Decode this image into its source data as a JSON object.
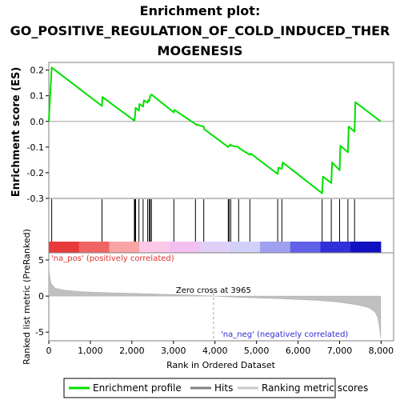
{
  "chart_data": {
    "type": "line",
    "title_lines": [
      "Enrichment plot:",
      "GO_POSITIVE_REGULATION_OF_COLD_INDUCED_THER",
      "MOGENESIS"
    ],
    "top_panel": {
      "ylabel": "Enrichment score (ES)",
      "ylim": [
        -0.3,
        0.23
      ],
      "yticks": [
        -0.3,
        -0.2,
        -0.1,
        0.0,
        0.1,
        0.2
      ],
      "ytick_labels": [
        "-0.3",
        "-0.2",
        "-0.1",
        "0.0",
        "0.1",
        "0.2"
      ],
      "series": [
        {
          "name": "Enrichment profile",
          "color": "#00e000",
          "x": [
            0,
            70,
            1280,
            1290,
            2060,
            2080,
            2090,
            2170,
            2180,
            2270,
            2290,
            2380,
            2390,
            2420,
            2440,
            2470,
            3010,
            3020,
            3530,
            3540,
            3730,
            3740,
            4320,
            4340,
            4380,
            4390,
            4570,
            4590,
            4840,
            4860,
            5510,
            5530,
            5610,
            5630,
            6580,
            6600,
            6800,
            6820,
            7000,
            7020,
            7200,
            7220,
            7360,
            7380,
            7990
          ],
          "y": [
            0.0,
            0.21,
            0.06,
            0.095,
            0.003,
            0.028,
            0.053,
            0.042,
            0.068,
            0.058,
            0.082,
            0.073,
            0.083,
            0.08,
            0.1,
            0.105,
            0.035,
            0.045,
            -0.01,
            -0.012,
            -0.02,
            -0.03,
            -0.1,
            -0.095,
            -0.09,
            -0.095,
            -0.1,
            -0.105,
            -0.13,
            -0.125,
            -0.205,
            -0.18,
            -0.185,
            -0.16,
            -0.28,
            -0.215,
            -0.24,
            -0.16,
            -0.19,
            -0.095,
            -0.12,
            -0.02,
            -0.04,
            0.075,
            0.0
          ]
        }
      ]
    },
    "hits_panel": {
      "legend_name": "Hits",
      "positions": [
        70,
        1280,
        2060,
        2080,
        2090,
        2170,
        2270,
        2380,
        2420,
        2440,
        2470,
        3010,
        3530,
        3730,
        4320,
        4340,
        4380,
        4570,
        4840,
        5510,
        5610,
        6580,
        6800,
        7000,
        7200,
        7360
      ],
      "gradient_colors": [
        "#e83a3a",
        "#f06464",
        "#f8a4a4",
        "#fcc8e8",
        "#f2c0f0",
        "#e0d0f8",
        "#d0d0f8",
        "#a0a0f0",
        "#6060e8",
        "#3030d8",
        "#1010c0"
      ]
    },
    "bottom_panel": {
      "ylabel": "Ranked list metric (PreRanked)",
      "ylim": [
        -6.2,
        6.0
      ],
      "yticks": [
        -5,
        0,
        5
      ],
      "ytick_labels": [
        "-5",
        "0",
        "5"
      ],
      "series_name": "Ranking metric scores",
      "color": "#c0c0c0",
      "metric_profile": {
        "rank": [
          0,
          10,
          50,
          150,
          400,
          800,
          1500,
          2500,
          3500,
          3965,
          4500,
          5500,
          6500,
          7000,
          7400,
          7700,
          7850,
          7920,
          7960,
          7990
        ],
        "value": [
          5.0,
          3.2,
          1.8,
          1.1,
          0.8,
          0.6,
          0.45,
          0.3,
          0.12,
          0.0,
          -0.15,
          -0.35,
          -0.6,
          -0.85,
          -1.2,
          -1.6,
          -2.2,
          -3.0,
          -4.3,
          -5.8
        ]
      }
    },
    "xlabel": "Rank in Ordered Dataset",
    "xlim": [
      0,
      8300
    ],
    "xticks": [
      0,
      1000,
      2000,
      3000,
      4000,
      5000,
      6000,
      7000,
      8000
    ],
    "xtick_labels": [
      "0",
      "1,000",
      "2,000",
      "3,000",
      "4,000",
      "5,000",
      "6,000",
      "7,000",
      "8,000"
    ],
    "zero_cross": 3965,
    "annotations": {
      "pos_label": "'na_pos' (positively correlated)",
      "neg_label": "'na_neg' (negatively correlated)",
      "zero_label": "Zero cross at 3965"
    },
    "legend": {
      "placement": "bottom",
      "entries": [
        "Enrichment profile",
        "Hits",
        "Ranking metric scores"
      ]
    }
  }
}
